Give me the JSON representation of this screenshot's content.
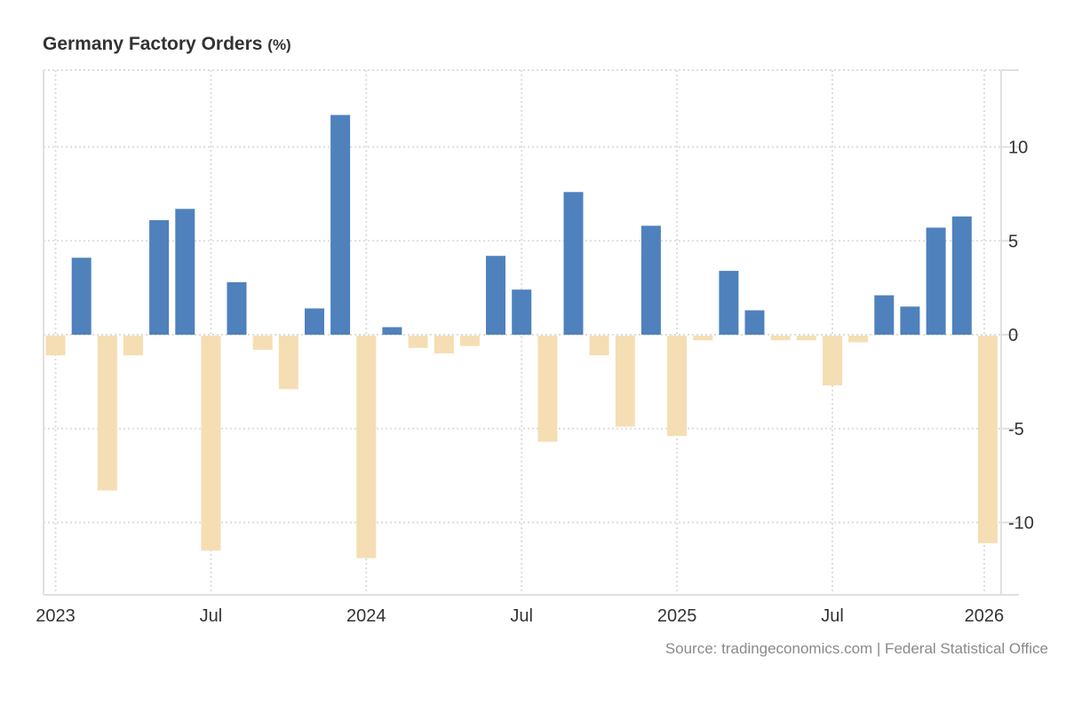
{
  "chart_data": {
    "type": "bar",
    "title": "Germany Factory Orders",
    "unit": "(%)",
    "xlabel": "",
    "ylabel": "",
    "ylim": [
      -14,
      14
    ],
    "yticks": [
      10,
      5,
      0,
      -5,
      -10
    ],
    "ytick_labels": [
      "10",
      "5",
      "0",
      "-5",
      "-10"
    ],
    "y_axis_position": "right",
    "grid": true,
    "xticks": [
      {
        "label": "2023",
        "month_index": 0
      },
      {
        "label": "Jul",
        "month_index": 6
      },
      {
        "label": "2024",
        "month_index": 12
      },
      {
        "label": "Jul",
        "month_index": 18
      },
      {
        "label": "2025",
        "month_index": 24
      },
      {
        "label": "Jul",
        "month_index": 30
      },
      {
        "label": "2026",
        "month_index": 36
      }
    ],
    "categories": [
      "2023-01",
      "2023-02",
      "2023-03",
      "2023-04",
      "2023-05",
      "2023-06",
      "2023-07",
      "2023-08",
      "2023-09",
      "2023-10",
      "2023-11",
      "2023-12",
      "2024-01",
      "2024-02",
      "2024-03",
      "2024-04",
      "2024-05",
      "2024-06",
      "2024-07",
      "2024-08",
      "2024-09",
      "2024-10",
      "2024-11",
      "2024-12",
      "2025-01",
      "2025-02",
      "2025-03",
      "2025-04",
      "2025-05",
      "2025-06",
      "2025-07",
      "2025-08",
      "2025-09",
      "2025-10",
      "2025-11",
      "2025-12",
      "2026-01"
    ],
    "values": [
      -1.1,
      4.1,
      -8.3,
      -1.1,
      6.1,
      6.7,
      -11.5,
      2.8,
      -0.8,
      -2.9,
      1.4,
      11.7,
      -11.9,
      0.4,
      -0.7,
      -1.0,
      -0.6,
      4.2,
      2.4,
      -5.7,
      7.6,
      -1.1,
      -4.9,
      5.8,
      -5.4,
      -0.3,
      3.4,
      1.3,
      -0.3,
      -0.3,
      -2.7,
      -0.4,
      2.1,
      1.5,
      5.7,
      6.3,
      -11.1
    ],
    "colors": {
      "positive": "#4f81bd",
      "negative": "#f5deb3",
      "grid": "#dddddd",
      "axis": "#e0e0e0"
    }
  },
  "source": "Source: tradingeconomics.com | Federal Statistical Office"
}
